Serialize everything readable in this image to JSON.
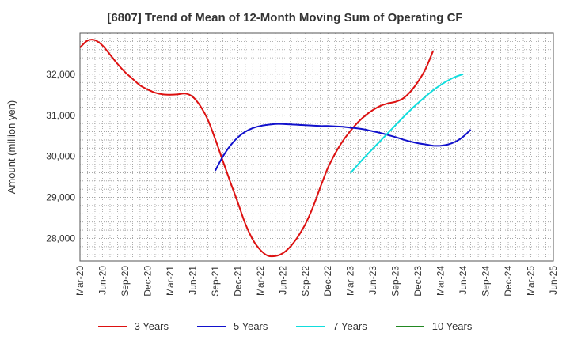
{
  "chart_data": {
    "type": "line",
    "title": "[6807]  Trend of Mean of 12-Month Moving Sum of Operating CF",
    "xlabel": "",
    "ylabel": "Amount (million yen)",
    "ylim": [
      27450,
      33000
    ],
    "yticks": [
      28000,
      29000,
      30000,
      31000,
      32000
    ],
    "ytick_labels": [
      "28,000",
      "29,000",
      "30,000",
      "31,000",
      "32,000"
    ],
    "xtick_labels": [
      "Mar-20",
      "Jun-20",
      "Sep-20",
      "Dec-20",
      "Mar-21",
      "Jun-21",
      "Sep-21",
      "Dec-21",
      "Mar-22",
      "Jun-22",
      "Sep-22",
      "Dec-22",
      "Mar-23",
      "Jun-23",
      "Sep-23",
      "Dec-23",
      "Mar-24",
      "Jun-24",
      "Sep-24",
      "Dec-24",
      "Mar-25",
      "Jun-25"
    ],
    "grid": true,
    "series": [
      {
        "name": "3 Years",
        "color": "#dd1111",
        "points": [
          [
            0,
            32650
          ],
          [
            1,
            32820
          ],
          [
            2,
            32830
          ],
          [
            3,
            32700
          ],
          [
            4,
            32480
          ],
          [
            5,
            32250
          ],
          [
            6,
            32050
          ],
          [
            7,
            31890
          ],
          [
            8,
            31730
          ],
          [
            9,
            31630
          ],
          [
            10,
            31550
          ],
          [
            11,
            31510
          ],
          [
            12,
            31500
          ],
          [
            13,
            31510
          ],
          [
            14,
            31530
          ],
          [
            15,
            31450
          ],
          [
            16,
            31230
          ],
          [
            17,
            30900
          ],
          [
            18,
            30420
          ],
          [
            19,
            29900
          ],
          [
            20,
            29380
          ],
          [
            21,
            28880
          ],
          [
            22,
            28360
          ],
          [
            23,
            27970
          ],
          [
            24,
            27720
          ],
          [
            25,
            27580
          ],
          [
            26,
            27570
          ],
          [
            27,
            27640
          ],
          [
            28,
            27800
          ],
          [
            29,
            28040
          ],
          [
            30,
            28350
          ],
          [
            31,
            28760
          ],
          [
            32,
            29250
          ],
          [
            33,
            29720
          ],
          [
            34,
            30080
          ],
          [
            35,
            30380
          ],
          [
            36,
            30620
          ],
          [
            37,
            30830
          ],
          [
            38,
            31000
          ],
          [
            39,
            31130
          ],
          [
            40,
            31230
          ],
          [
            41,
            31290
          ],
          [
            42,
            31330
          ],
          [
            43,
            31410
          ],
          [
            44,
            31580
          ],
          [
            45,
            31820
          ],
          [
            46,
            32130
          ],
          [
            47,
            32570
          ]
        ]
      },
      {
        "name": "5 Years",
        "color": "#1111cc",
        "points": [
          [
            18,
            29650
          ],
          [
            19,
            29990
          ],
          [
            20,
            30260
          ],
          [
            21,
            30460
          ],
          [
            22,
            30600
          ],
          [
            23,
            30690
          ],
          [
            24,
            30740
          ],
          [
            25,
            30770
          ],
          [
            26,
            30790
          ],
          [
            27,
            30790
          ],
          [
            28,
            30780
          ],
          [
            29,
            30770
          ],
          [
            30,
            30760
          ],
          [
            31,
            30750
          ],
          [
            32,
            30740
          ],
          [
            33,
            30740
          ],
          [
            34,
            30730
          ],
          [
            35,
            30720
          ],
          [
            36,
            30700
          ],
          [
            37,
            30680
          ],
          [
            38,
            30650
          ],
          [
            39,
            30610
          ],
          [
            40,
            30570
          ],
          [
            41,
            30520
          ],
          [
            42,
            30470
          ],
          [
            43,
            30410
          ],
          [
            44,
            30360
          ],
          [
            45,
            30320
          ],
          [
            46,
            30290
          ],
          [
            47,
            30260
          ],
          [
            48,
            30260
          ],
          [
            49,
            30290
          ],
          [
            50,
            30360
          ],
          [
            51,
            30480
          ],
          [
            52,
            30650
          ]
        ]
      },
      {
        "name": "7 Years",
        "color": "#11dddd",
        "points": [
          [
            36,
            29590
          ],
          [
            37,
            29800
          ],
          [
            38,
            30000
          ],
          [
            39,
            30190
          ],
          [
            40,
            30380
          ],
          [
            41,
            30570
          ],
          [
            42,
            30760
          ],
          [
            43,
            30950
          ],
          [
            44,
            31130
          ],
          [
            45,
            31300
          ],
          [
            46,
            31460
          ],
          [
            47,
            31610
          ],
          [
            48,
            31740
          ],
          [
            49,
            31850
          ],
          [
            50,
            31940
          ],
          [
            51,
            32000
          ]
        ]
      },
      {
        "name": "10 Years",
        "color": "#228822",
        "points": []
      }
    ]
  }
}
